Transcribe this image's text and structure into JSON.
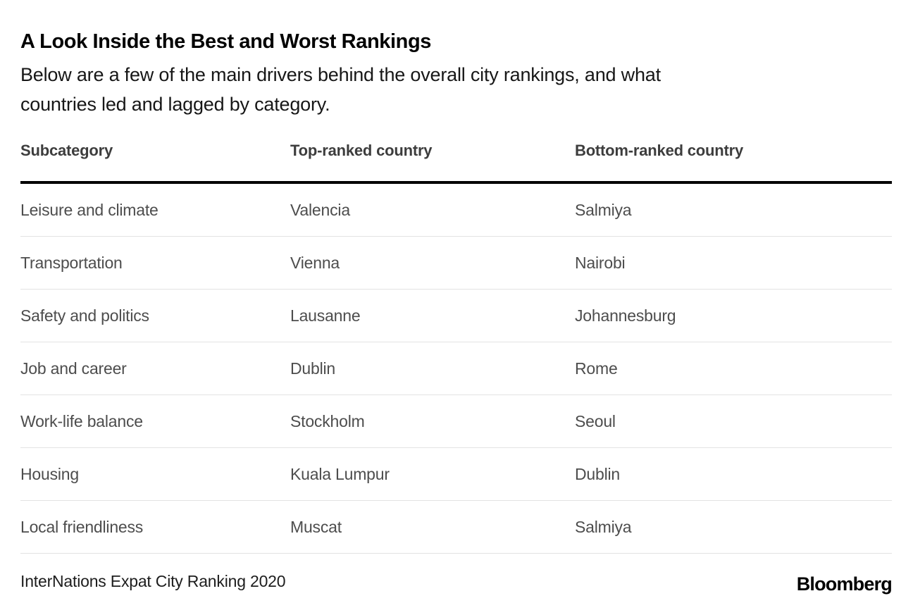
{
  "colors": {
    "background": "#ffffff",
    "title_text": "#000000",
    "header_text": "#3d3d3d",
    "cell_text": "#4d4d4d",
    "thick_rule": "#000000",
    "thin_rule": "#e3e3e3"
  },
  "header": {
    "title": "A Look Inside the Best and Worst Rankings",
    "subtitle_lines": [
      "Below are a few of the main drivers behind the overall city rankings, and what",
      "countries led and lagged by category."
    ]
  },
  "table": {
    "columns": {
      "subcategory": "Subcategory",
      "top": "Top-ranked country",
      "bottom": "Bottom-ranked country"
    },
    "rows": [
      {
        "subcategory": "Leisure and climate",
        "top": "Valencia",
        "bottom": "Salmiya"
      },
      {
        "subcategory": "Transportation",
        "top": "Vienna",
        "bottom": "Nairobi"
      },
      {
        "subcategory": "Safety and politics",
        "top": "Lausanne",
        "bottom": "Johannesburg"
      },
      {
        "subcategory": "Job and career",
        "top": "Dublin",
        "bottom": "Rome"
      },
      {
        "subcategory": "Work-life balance",
        "top": "Stockholm",
        "bottom": "Seoul"
      },
      {
        "subcategory": "Housing",
        "top": "Kuala Lumpur",
        "bottom": "Dublin"
      },
      {
        "subcategory": "Local friendliness",
        "top": "Muscat",
        "bottom": "Salmiya"
      }
    ]
  },
  "footer": {
    "source": "InterNations Expat City Ranking 2020",
    "brand": "Bloomberg"
  },
  "chart_data": {
    "type": "table",
    "title": "A Look Inside the Best and Worst Rankings",
    "subtitle": "Below are a few of the main drivers behind the overall city rankings, and what countries led and lagged by category.",
    "columns": [
      "Subcategory",
      "Top-ranked country",
      "Bottom-ranked country"
    ],
    "rows": [
      [
        "Leisure and climate",
        "Valencia",
        "Salmiya"
      ],
      [
        "Transportation",
        "Vienna",
        "Nairobi"
      ],
      [
        "Safety and politics",
        "Lausanne",
        "Johannesburg"
      ],
      [
        "Job and career",
        "Dublin",
        "Rome"
      ],
      [
        "Work-life balance",
        "Stockholm",
        "Seoul"
      ],
      [
        "Housing",
        "Kuala Lumpur",
        "Dublin"
      ],
      [
        "Local friendliness",
        "Muscat",
        "Salmiya"
      ]
    ],
    "source": "InterNations Expat City Ranking 2020",
    "brand": "Bloomberg",
    "layout": {
      "grid": "off",
      "header_rule": "thick-black",
      "row_rules": "thin-gray"
    }
  }
}
